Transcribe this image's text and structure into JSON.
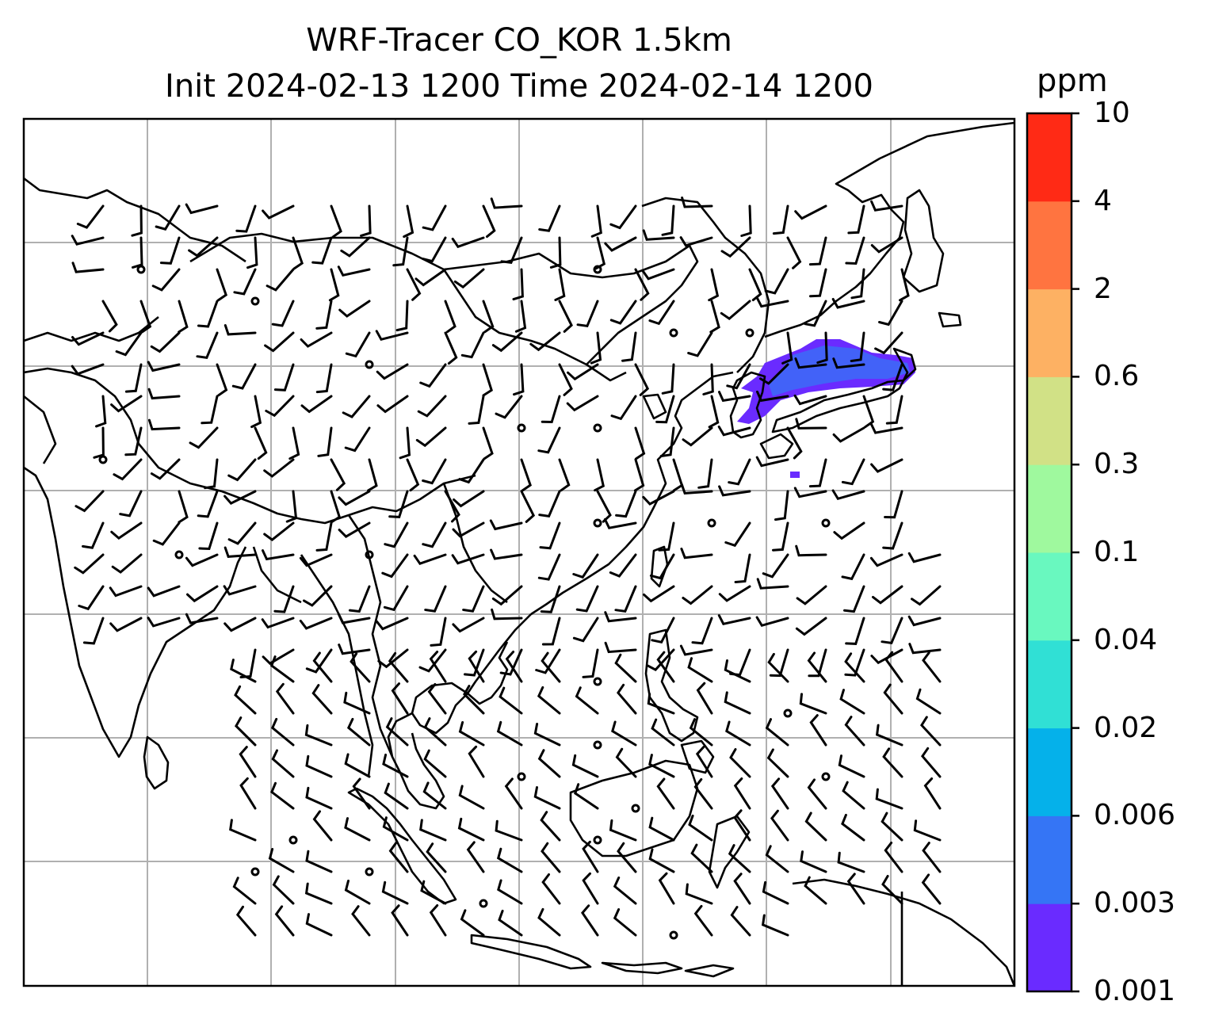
{
  "title_line1": "WRF-Tracer CO_KOR 1.5km",
  "title_line2": "Init 2024-02-13 1200 Time 2024-02-14 1200",
  "colorbar": {
    "unit": "ppm",
    "levels": [
      "0.001",
      "0.003",
      "0.006",
      "0.02",
      "0.04",
      "0.1",
      "0.3",
      "0.6",
      "2",
      "4",
      "10"
    ],
    "colors": [
      "#6a2bff",
      "#3575f5",
      "#05b1ea",
      "#30e0d5",
      "#69f8bf",
      "#9ff99e",
      "#d1e186",
      "#fdb163",
      "#ff7440",
      "#ff2a15"
    ]
  },
  "map": {
    "coastline_color": "#000000",
    "gridline_color": "#b0b0b0",
    "plume_color": "#6a2bff",
    "wind_barb_color": "#000000",
    "layers": [
      "coastlines",
      "country-borders",
      "gridlines",
      "co-tracer-concentration",
      "wind-barbs"
    ]
  }
}
